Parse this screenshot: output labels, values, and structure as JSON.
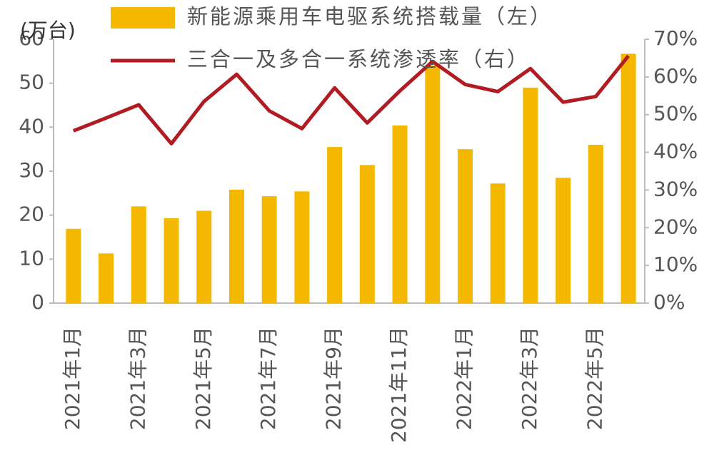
{
  "chart_data": {
    "type": "bar_line",
    "y_label": "(万台)",
    "categories": [
      "2021年1月",
      null,
      "2021年3月",
      null,
      "2021年5月",
      null,
      "2021年7月",
      null,
      "2021年9月",
      null,
      "2021年11月",
      null,
      "2022年1月",
      null,
      "2022年3月",
      null,
      "2022年5月",
      null
    ],
    "series": [
      {
        "name": "新能源乘用车电驱系统搭载量（左）",
        "type": "bar",
        "color": "#f5b800",
        "values": [
          16.9,
          11.3,
          22,
          19.3,
          21,
          25.8,
          24.3,
          25.4,
          35.5,
          31.4,
          40.4,
          54,
          35,
          27.2,
          49,
          28.5,
          36,
          56.7
        ]
      },
      {
        "name": "三合一及多合一系统渗透率（右）",
        "type": "line",
        "axis": "y2",
        "color": "#b01c22",
        "values": [
          45.7,
          49.1,
          52.6,
          42.3,
          53.5,
          60.7,
          51,
          46.3,
          57.1,
          47.8,
          56.3,
          64.1,
          58,
          56.1,
          62.2,
          53.3,
          54.8,
          65.6
        ]
      }
    ],
    "ylim": [
      0,
      60
    ],
    "yticks": [
      0,
      10,
      20,
      30,
      40,
      50,
      60
    ],
    "y2lim": [
      0,
      70
    ],
    "y2ticks": [
      {
        "value": 0,
        "label": "0%"
      },
      {
        "value": 10,
        "label": "10%"
      },
      {
        "value": 20,
        "label": "20%"
      },
      {
        "value": 30,
        "label": "30%"
      },
      {
        "value": 40,
        "label": "40%"
      },
      {
        "value": 50,
        "label": "50%"
      },
      {
        "value": 60,
        "label": "60%"
      },
      {
        "value": 70,
        "label": "70%"
      }
    ]
  }
}
